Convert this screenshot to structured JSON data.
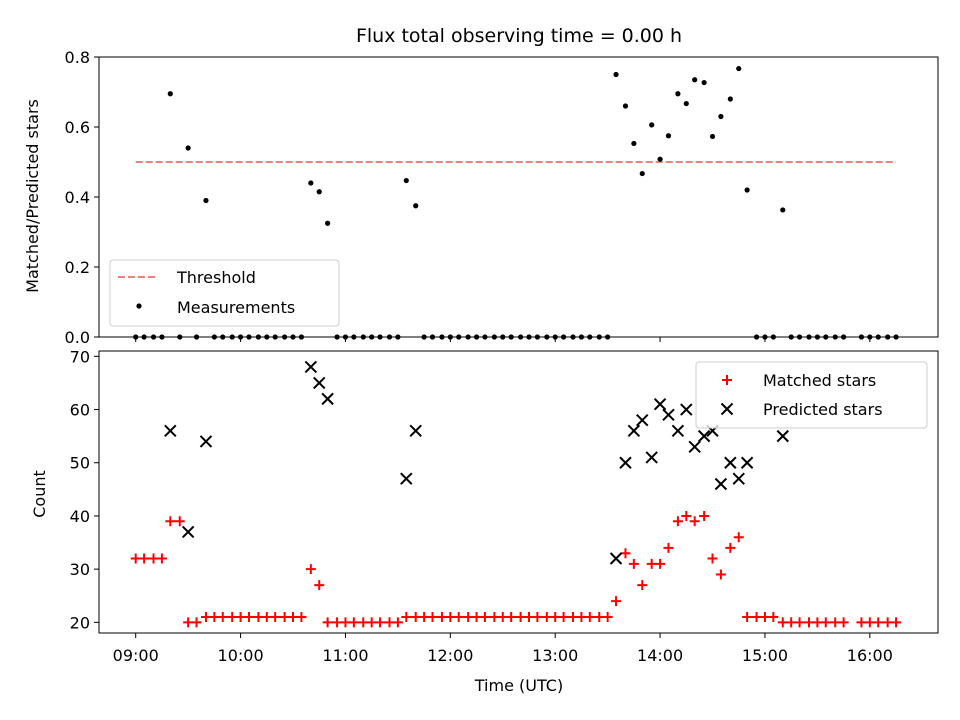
{
  "chart_data": [
    {
      "type": "scatter",
      "title": "Flux total observing time = 0.00 h",
      "xlabel": "",
      "ylabel": "Matched/Predicted stars",
      "xlim": [
        8.65,
        16.65
      ],
      "ylim": [
        0,
        0.8
      ],
      "yticks": [
        "0.0",
        "0.2",
        "0.4",
        "0.6",
        "0.8"
      ],
      "legend_position": "lower-left",
      "threshold": {
        "name": "Threshold",
        "value": 0.5,
        "x_range": [
          9.0,
          16.25
        ],
        "color": "#f08080"
      },
      "series": [
        {
          "name": "Measurements",
          "color": "#000000",
          "x": [
            9.0,
            9.08,
            9.17,
            9.25,
            9.33,
            9.42,
            9.5,
            9.58,
            9.67,
            9.75,
            9.83,
            9.92,
            10.0,
            10.08,
            10.17,
            10.25,
            10.33,
            10.42,
            10.5,
            10.58,
            10.67,
            10.75,
            10.83,
            10.92,
            11.0,
            11.08,
            11.17,
            11.25,
            11.33,
            11.42,
            11.5,
            11.58,
            11.67,
            11.75,
            11.83,
            11.92,
            12.0,
            12.08,
            12.17,
            12.25,
            12.33,
            12.42,
            12.5,
            12.58,
            12.67,
            12.75,
            12.83,
            12.92,
            13.0,
            13.08,
            13.17,
            13.25,
            13.33,
            13.42,
            13.5,
            13.58,
            13.67,
            13.75,
            13.83,
            13.92,
            14.0,
            14.08,
            14.17,
            14.25,
            14.33,
            14.42,
            14.5,
            14.58,
            14.67,
            14.75,
            14.83,
            14.92,
            15.0,
            15.08,
            15.17,
            15.25,
            15.33,
            15.42,
            15.5,
            15.58,
            15.67,
            15.75,
            15.92,
            16.0,
            16.08,
            16.17,
            16.25
          ],
          "y": [
            0,
            0,
            0,
            0,
            0.695,
            0,
            0.54,
            0,
            0.39,
            0,
            0,
            0,
            0,
            0,
            0,
            0,
            0,
            0,
            0,
            0,
            0.44,
            0.415,
            0.325,
            0,
            0,
            0,
            0,
            0,
            0,
            0,
            0,
            0.447,
            0.375,
            0,
            0,
            0,
            0,
            0,
            0,
            0,
            0,
            0,
            0,
            0,
            0,
            0,
            0,
            0,
            0,
            0,
            0,
            0,
            0,
            0,
            0,
            0.75,
            0.66,
            0.553,
            0.467,
            0.606,
            0.508,
            0.575,
            0.695,
            0.667,
            0.735,
            0.727,
            0.573,
            0.63,
            0.68,
            0.767,
            0.42,
            0,
            0,
            0,
            0.363,
            0,
            0,
            0,
            0,
            0,
            0,
            0,
            0,
            0,
            0,
            0,
            0
          ]
        }
      ]
    },
    {
      "type": "scatter",
      "title": "",
      "xlabel": "Time (UTC)",
      "ylabel": "Count",
      "xlim": [
        8.65,
        16.65
      ],
      "ylim": [
        18,
        71
      ],
      "yticks": [
        "20",
        "30",
        "40",
        "50",
        "60",
        "70"
      ],
      "xticks": [
        "09:00",
        "10:00",
        "11:00",
        "12:00",
        "13:00",
        "14:00",
        "15:00",
        "16:00"
      ],
      "legend_position": "upper-right",
      "series": [
        {
          "name": "Matched stars",
          "color": "#ff0000",
          "marker": "plus",
          "x": [
            9.0,
            9.08,
            9.17,
            9.25,
            9.33,
            9.42,
            9.5,
            9.58,
            9.67,
            9.75,
            9.83,
            9.92,
            10.0,
            10.08,
            10.17,
            10.25,
            10.33,
            10.42,
            10.5,
            10.58,
            10.67,
            10.75,
            10.83,
            10.92,
            11.0,
            11.08,
            11.17,
            11.25,
            11.33,
            11.42,
            11.5,
            11.58,
            11.67,
            11.75,
            11.83,
            11.92,
            12.0,
            12.08,
            12.17,
            12.25,
            12.33,
            12.42,
            12.5,
            12.58,
            12.67,
            12.75,
            12.83,
            12.92,
            13.0,
            13.08,
            13.17,
            13.25,
            13.33,
            13.42,
            13.5,
            13.58,
            13.67,
            13.75,
            13.83,
            13.92,
            14.0,
            14.08,
            14.17,
            14.25,
            14.33,
            14.42,
            14.5,
            14.58,
            14.67,
            14.75,
            14.83,
            14.92,
            15.0,
            15.08,
            15.17,
            15.25,
            15.33,
            15.42,
            15.5,
            15.58,
            15.67,
            15.75,
            15.92,
            16.0,
            16.08,
            16.17,
            16.25
          ],
          "y": [
            32,
            32,
            32,
            32,
            39,
            39,
            20,
            20,
            21,
            21,
            21,
            21,
            21,
            21,
            21,
            21,
            21,
            21,
            21,
            21,
            30,
            27,
            20,
            20,
            20,
            20,
            20,
            20,
            20,
            20,
            20,
            21,
            21,
            21,
            21,
            21,
            21,
            21,
            21,
            21,
            21,
            21,
            21,
            21,
            21,
            21,
            21,
            21,
            21,
            21,
            21,
            21,
            21,
            21,
            21,
            24,
            33,
            31,
            27,
            31,
            31,
            34,
            39,
            40,
            39,
            40,
            32,
            29,
            34,
            36,
            21,
            21,
            21,
            21,
            20,
            20,
            20,
            20,
            20,
            20,
            20,
            20,
            20,
            20,
            20,
            20,
            20
          ]
        },
        {
          "name": "Predicted stars",
          "color": "#000000",
          "marker": "x",
          "x": [
            9.33,
            9.5,
            9.67,
            10.67,
            10.75,
            10.83,
            11.58,
            11.67,
            13.58,
            13.67,
            13.75,
            13.83,
            13.92,
            14.0,
            14.08,
            14.17,
            14.25,
            14.33,
            14.42,
            14.5,
            14.58,
            14.67,
            14.75,
            14.83,
            15.17
          ],
          "y": [
            56,
            37,
            54,
            68,
            65,
            62,
            47,
            56,
            32,
            50,
            56,
            58,
            51,
            61,
            59,
            56,
            60,
            53,
            55,
            56,
            46,
            50,
            47,
            50,
            55
          ]
        }
      ]
    }
  ]
}
